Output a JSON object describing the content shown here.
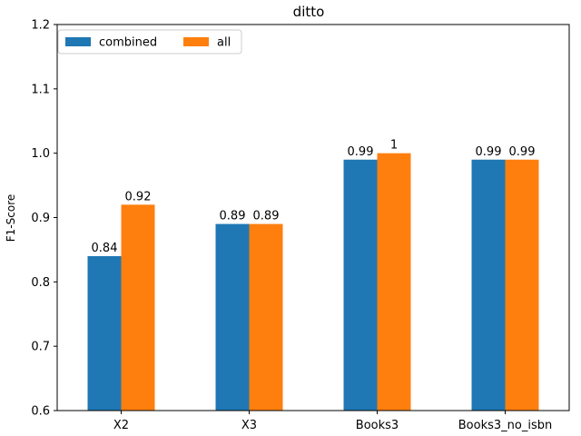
{
  "chart_data": {
    "type": "bar",
    "title": "ditto",
    "xlabel": "",
    "ylabel": "F1-Score",
    "categories": [
      "X2",
      "X3",
      "Books3",
      "Books3_no_isbn"
    ],
    "series": [
      {
        "name": "combined",
        "values": [
          0.84,
          0.89,
          0.99,
          0.99
        ],
        "labels": [
          "0.84",
          "0.89",
          "0.99",
          "0.99"
        ],
        "color": "#1f77b4"
      },
      {
        "name": "all",
        "values": [
          0.92,
          0.89,
          1.0,
          0.99
        ],
        "labels": [
          "0.92",
          "0.89",
          "1",
          "0.99"
        ],
        "color": "#ff7f0e"
      }
    ],
    "ylim": [
      0.6,
      1.2
    ],
    "yticks": [
      "0.6",
      "0.7",
      "0.8",
      "0.9",
      "1.0",
      "1.1",
      "1.2"
    ],
    "grid": false,
    "legend_position": "top-left"
  }
}
